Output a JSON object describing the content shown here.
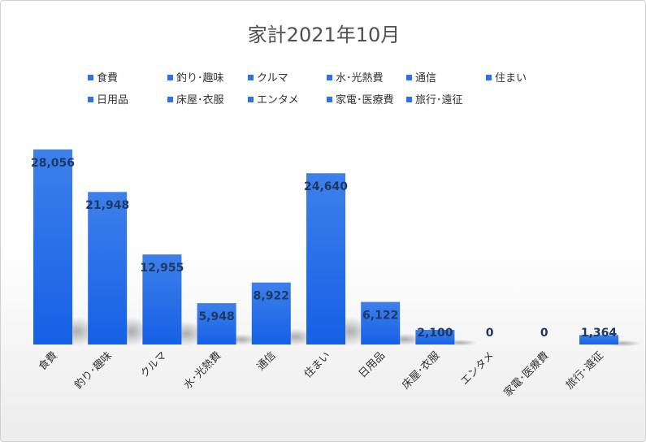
{
  "chart_data": {
    "type": "bar",
    "title": "家計2021年10月",
    "categories": [
      "食費",
      "釣り･趣味",
      "クルマ",
      "水･光熱費",
      "通信",
      "住まい",
      "日用品",
      "床屋･衣服",
      "エンタメ",
      "家電･医療費",
      "旅行･遠征"
    ],
    "values": [
      28056,
      21948,
      12955,
      5948,
      8922,
      24640,
      6122,
      2100,
      0,
      0,
      1364
    ],
    "value_labels": [
      "28,056",
      "21,948",
      "12,955",
      "5,948",
      "8,922",
      "24,640",
      "6,122",
      "2,100",
      "0",
      "0",
      "1,364"
    ],
    "legend": [
      "食費",
      "釣り･趣味",
      "クルマ",
      "水･光熱費",
      "通信",
      "住まい",
      "日用品",
      "床屋･衣服",
      "エンタメ",
      "家電･医療費",
      "旅行･遠征"
    ],
    "legend_position": "top",
    "bar_color": "#2f72e8",
    "grid": false,
    "xlabel": "",
    "ylabel": ""
  }
}
